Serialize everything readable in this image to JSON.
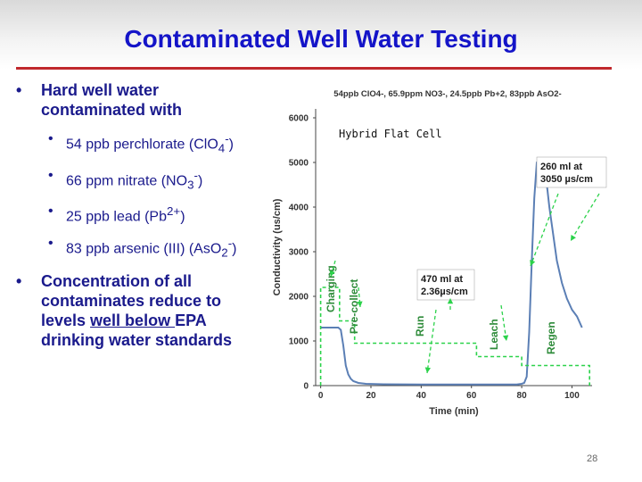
{
  "slide": {
    "title": "Contaminated Well Water Testing",
    "page_number": "28"
  },
  "bullets": {
    "b1_text": "Hard well water contaminated with",
    "sub1_text": "54 ppb perchlorate (ClO",
    "sub1_sub": "4",
    "sub1_sup": "-",
    "sub1_end": ")",
    "sub2_text": "66 ppm nitrate (NO",
    "sub2_sub": "3",
    "sub2_sup": "-",
    "sub2_end": ")",
    "sub3_text": "25 ppb lead (Pb",
    "sub3_sup": "2+",
    "sub3_end": ")",
    "sub4_text": "83 ppb arsenic (III) (AsO",
    "sub4_sub": "2",
    "sub4_sup": "-",
    "sub4_end": ")",
    "b2_text_a": "Concentration of all contaminates reduce to levels ",
    "b2_underline": "well below ",
    "b2_text_b": "EPA drinking water standards"
  },
  "chart_data": {
    "type": "line",
    "title": "54ppb ClO4-, 65.9ppm NO3-, 24.5ppb Pb+2, 83ppb AsO2-",
    "inner_label": "Hybrid Flat Cell",
    "xlabel": "Time (min)",
    "ylabel": "Conductivity (us/cm)",
    "xlim": [
      -2,
      108
    ],
    "ylim": [
      0,
      6200
    ],
    "xticks": [
      0,
      20,
      40,
      60,
      80,
      100
    ],
    "yticks": [
      0,
      1000,
      2000,
      3000,
      4000,
      5000,
      6000
    ],
    "series": [
      {
        "color": "#5b7fb5",
        "x": [
          0,
          1,
          2,
          3,
          4,
          5,
          6,
          7,
          8,
          9,
          10,
          11,
          12,
          13,
          15,
          18,
          25,
          40,
          60,
          78,
          80,
          81,
          82,
          83,
          84,
          85,
          86,
          87,
          88,
          89,
          90,
          91,
          92,
          94,
          96,
          98,
          100,
          102,
          104
        ],
        "y": [
          1300,
          1300,
          1300,
          1300,
          1300,
          1300,
          1300,
          1300,
          1250,
          900,
          450,
          250,
          150,
          100,
          60,
          40,
          30,
          25,
          25,
          25,
          40,
          60,
          200,
          1200,
          2800,
          4200,
          5000,
          5050,
          5000,
          4800,
          4500,
          4000,
          3600,
          2800,
          2300,
          1950,
          1700,
          1550,
          1300
        ]
      },
      {
        "color": "#2bd24a",
        "dashed": true,
        "x": [
          0,
          0,
          7.5,
          7.5,
          13.5,
          13.5,
          62,
          62,
          80,
          80,
          107,
          107
        ],
        "y": [
          0,
          2200,
          2200,
          1450,
          1450,
          950,
          950,
          650,
          650,
          450,
          450,
          0
        ]
      }
    ],
    "annotations": [
      {
        "text": "Charging",
        "rotated": true,
        "color": "#2e8b3a"
      },
      {
        "text": "Pre-collect",
        "rotated": true,
        "color": "#2e8b3a"
      },
      {
        "text": "470 ml at",
        "text2": "2.36µs/cm",
        "color": "#1a1a1a"
      },
      {
        "text": "Run",
        "rotated": true,
        "color": "#2e8b3a"
      },
      {
        "text": "Leach",
        "rotated": true,
        "color": "#2e8b3a"
      },
      {
        "text": "260 ml at",
        "text2": "3050 µs/cm",
        "color": "#1a1a1a"
      },
      {
        "text": "Regen",
        "rotated": true,
        "color": "#2e8b3a"
      }
    ]
  }
}
